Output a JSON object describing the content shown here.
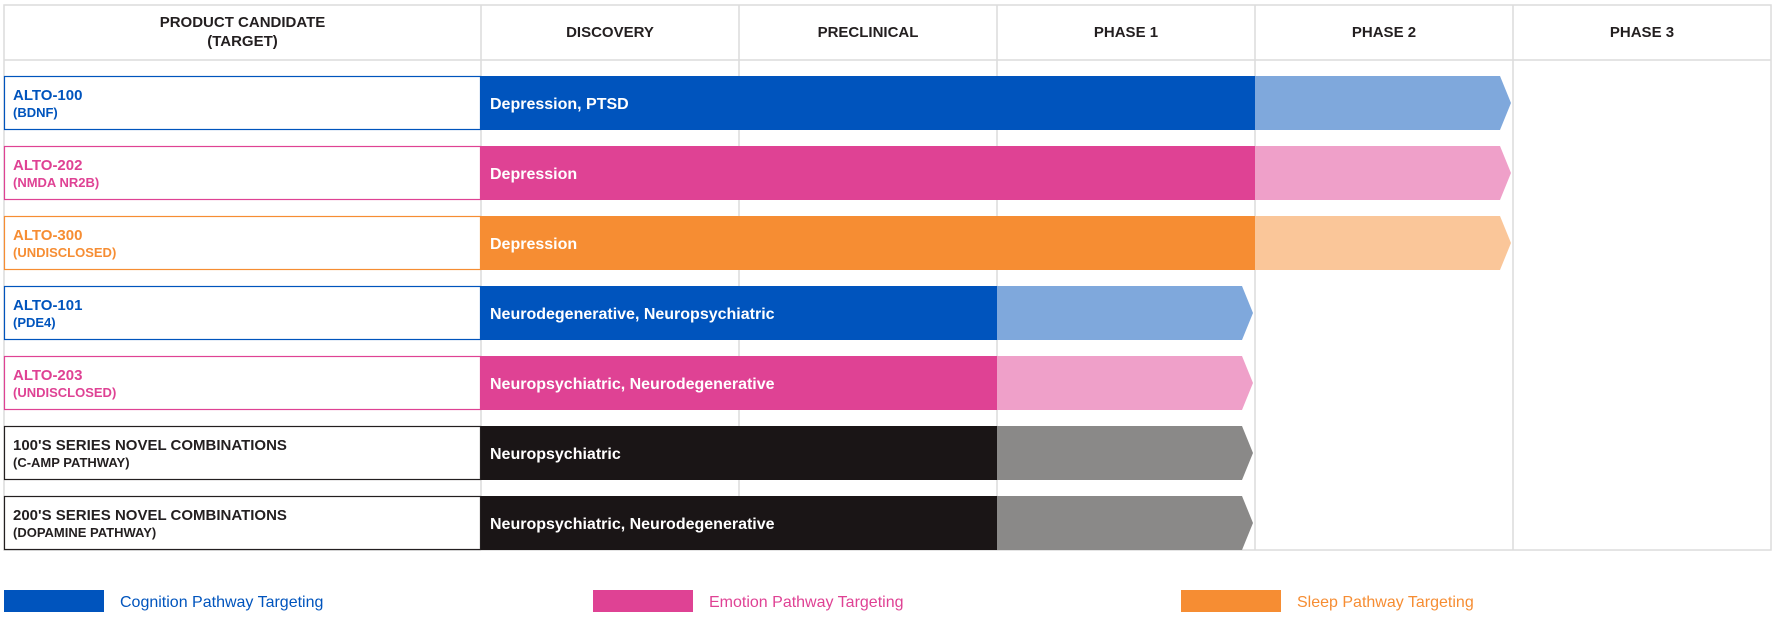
{
  "chart_data": {
    "type": "table",
    "columns": [
      "PRODUCT CANDIDATE\n(TARGET)",
      "DISCOVERY",
      "PRECLINICAL",
      "PHASE 1",
      "PHASE 2",
      "PHASE 3"
    ],
    "stages": [
      "DISCOVERY",
      "PRECLINICAL",
      "PHASE 1",
      "PHASE 2",
      "PHASE 3"
    ],
    "rows": [
      {
        "name": "ALTO-100",
        "target": "(BDNF)",
        "indication": "Depression, PTSD",
        "pathway": "cognition",
        "completed_through": "PHASE 1",
        "in_progress": "PHASE 2"
      },
      {
        "name": "ALTO-202",
        "target": "(NMDA NR2B)",
        "indication": "Depression",
        "pathway": "emotion",
        "completed_through": "PHASE 1",
        "in_progress": "PHASE 2"
      },
      {
        "name": "ALTO-300",
        "target": "(UNDISCLOSED)",
        "indication": "Depression",
        "pathway": "sleep",
        "completed_through": "PHASE 1",
        "in_progress": "PHASE 2"
      },
      {
        "name": "ALTO-101",
        "target": "(PDE4)",
        "indication": "Neurodegenerative, Neuropsychiatric",
        "pathway": "cognition",
        "completed_through": "PRECLINICAL",
        "in_progress": "PHASE 1"
      },
      {
        "name": "ALTO-203",
        "target": "(UNDISCLOSED)",
        "indication": "Neuropsychiatric, Neurodegenerative",
        "pathway": "emotion",
        "completed_through": "PRECLINICAL",
        "in_progress": "PHASE 1"
      },
      {
        "name": "100'S SERIES NOVEL COMBINATIONS",
        "target": "(C-AMP PATHWAY)",
        "indication": "Neuropsychiatric",
        "pathway": "combination",
        "completed_through": "PRECLINICAL",
        "in_progress": "PHASE 1"
      },
      {
        "name": "200'S SERIES NOVEL COMBINATIONS",
        "target": "(DOPAMINE PATHWAY)",
        "indication": "Neuropsychiatric, Neurodegenerative",
        "pathway": "combination",
        "completed_through": "PRECLINICAL",
        "in_progress": "PHASE 1"
      }
    ],
    "pathways": {
      "cognition": {
        "label": "Cognition Pathway Targeting",
        "color": "#0054bd",
        "light": "#7fa8dc",
        "in_legend": true
      },
      "emotion": {
        "label": "Emotion Pathway Targeting",
        "color": "#df4294",
        "light": "#efa0c9",
        "in_legend": true
      },
      "sleep": {
        "label": "Sleep Pathway Targeting",
        "color": "#f68d33",
        "light": "#fac699",
        "in_legend": true
      },
      "combination": {
        "label": "",
        "color": "#1a1516",
        "light": "#8a8988",
        "in_legend": false
      }
    },
    "name_color_combination": "#231f20",
    "grid": true,
    "legend_position": "bottom"
  }
}
